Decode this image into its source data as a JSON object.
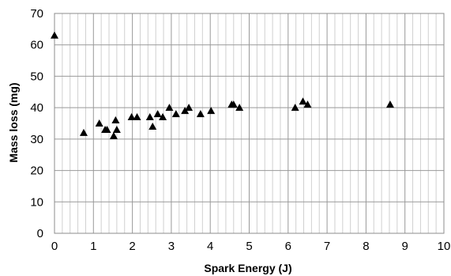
{
  "chart_data": {
    "type": "scatter",
    "title": "",
    "xlabel": "Spark Energy (J)",
    "ylabel": "Mass loss (mg)",
    "xlim": [
      0,
      10
    ],
    "ylim": [
      0,
      70
    ],
    "x_ticks": [
      0,
      1,
      2,
      3,
      4,
      5,
      6,
      7,
      8,
      9,
      10
    ],
    "y_ticks": [
      0,
      10,
      20,
      30,
      40,
      50,
      60,
      70
    ],
    "x_tick_labels": [
      "0",
      "1",
      "2",
      "3",
      "4",
      "5",
      "6",
      "7",
      "8",
      "9",
      "10"
    ],
    "y_tick_labels": [
      "0",
      "10",
      "20",
      "30",
      "40",
      "50",
      "60",
      "70"
    ],
    "grid": {
      "major": true,
      "minor_x": true,
      "minor_x_step": 0.2
    },
    "legend": "none",
    "marker": "triangle",
    "marker_color": "#000000",
    "grid_color": "#999999",
    "series": [
      {
        "points": [
          [
            0.0,
            63
          ],
          [
            0.75,
            32
          ],
          [
            1.15,
            35
          ],
          [
            1.3,
            33
          ],
          [
            1.35,
            33
          ],
          [
            1.52,
            31
          ],
          [
            1.57,
            36
          ],
          [
            1.6,
            33
          ],
          [
            1.98,
            37
          ],
          [
            2.12,
            37
          ],
          [
            2.45,
            37
          ],
          [
            2.52,
            34
          ],
          [
            2.65,
            38
          ],
          [
            2.78,
            37
          ],
          [
            2.95,
            40
          ],
          [
            3.12,
            38
          ],
          [
            3.35,
            39
          ],
          [
            3.45,
            40
          ],
          [
            3.75,
            38
          ],
          [
            4.02,
            39
          ],
          [
            4.55,
            41
          ],
          [
            4.6,
            41
          ],
          [
            4.75,
            40
          ],
          [
            6.18,
            40
          ],
          [
            6.38,
            42
          ],
          [
            6.5,
            41
          ],
          [
            8.62,
            41
          ]
        ]
      }
    ]
  }
}
